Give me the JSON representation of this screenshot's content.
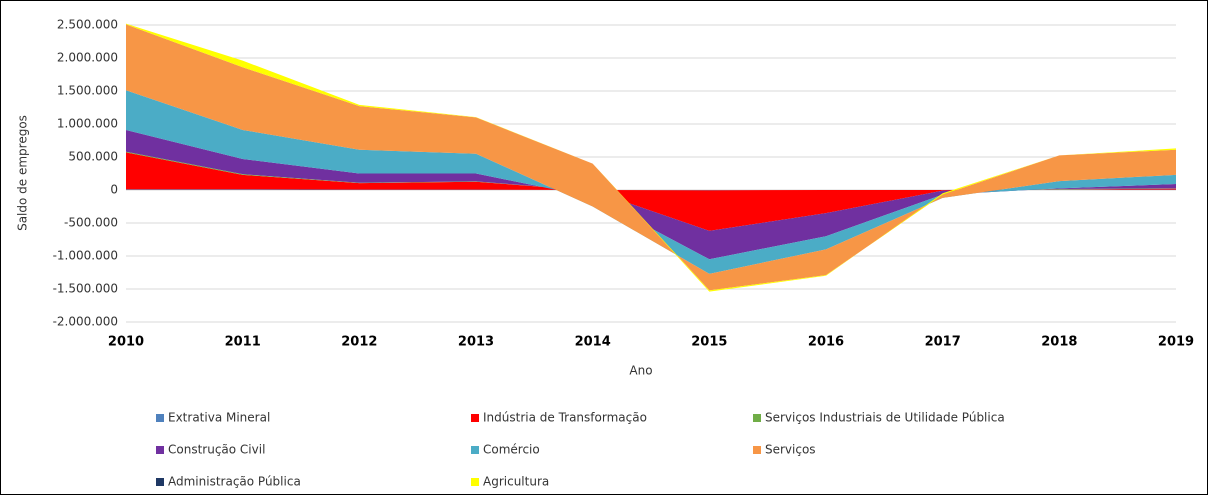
{
  "chart_data": {
    "type": "stacked-area",
    "x_label": "Ano",
    "y_label": "Saldo de empregos",
    "categories": [
      "2010",
      "2011",
      "2012",
      "2013",
      "2014",
      "2015",
      "2016",
      "2017",
      "2018",
      "2019"
    ],
    "ylim": [
      -2000000,
      2500000
    ],
    "yticks": [
      {
        "value": -2000000,
        "label": "-2.000.000"
      },
      {
        "value": -1500000,
        "label": "-1.500.000"
      },
      {
        "value": -1000000,
        "label": "-1.000.000"
      },
      {
        "value": -500000,
        "label": "-500.000"
      },
      0,
      {
        "value": 500000,
        "label": "500.000"
      },
      {
        "value": 1000000,
        "label": "1.000.000"
      },
      {
        "value": 1500000,
        "label": "1.500.000"
      },
      {
        "value": 2000000,
        "label": "2.000.000"
      },
      {
        "value": 2500000,
        "label": "2.500.000"
      }
    ],
    "grid": true,
    "legend": "bottom",
    "series": [
      {
        "name": "Extrativa Mineral",
        "color": "#4f81bd",
        "values": [
          10000,
          10000,
          5000,
          5000,
          0,
          -5000,
          0,
          0,
          5000,
          5000
        ]
      },
      {
        "name": "Indústria de Transformação",
        "color": "#ff0000",
        "values": [
          560000,
          220000,
          100000,
          120000,
          -10000,
          -615000,
          -350000,
          -10000,
          5000,
          15000
        ]
      },
      {
        "name": "Serviços Industriais de Utilidade Pública",
        "color": "#70ad47",
        "values": [
          10000,
          10000,
          5000,
          5000,
          0,
          0,
          0,
          0,
          5000,
          5000
        ]
      },
      {
        "name": "Construção Civil",
        "color": "#7030a0",
        "values": [
          330000,
          230000,
          140000,
          120000,
          -100000,
          -430000,
          -350000,
          -60000,
          10000,
          65000
        ]
      },
      {
        "name": "Comércio",
        "color": "#4bacc6",
        "values": [
          600000,
          440000,
          360000,
          300000,
          -140000,
          -220000,
          -200000,
          -50000,
          110000,
          140000
        ]
      },
      {
        "name": "Serviços",
        "color": "#f79646",
        "values": [
          1000000,
          950000,
          660000,
          550000,
          650000,
          -250000,
          -390000,
          50000,
          390000,
          380000
        ]
      },
      {
        "name": "Administração Pública",
        "color": "#1f3864",
        "values": [
          0,
          0,
          0,
          0,
          0,
          0,
          0,
          0,
          0,
          0
        ]
      },
      {
        "name": "Agricultura",
        "color": "#ffff00",
        "values": [
          10000,
          100000,
          20000,
          5000,
          0,
          -20000,
          -10000,
          20000,
          0,
          20000
        ]
      }
    ]
  }
}
